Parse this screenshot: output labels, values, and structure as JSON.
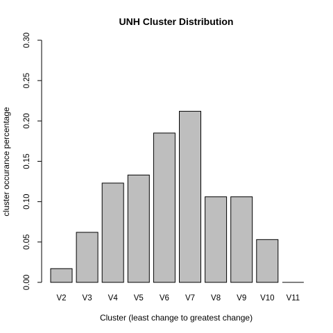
{
  "chart_data": {
    "type": "bar",
    "title": "UNH Cluster Distribution",
    "xlabel": "Cluster (least change to greatest change)",
    "ylabel": "cluster occurance percentage",
    "categories": [
      "V2",
      "V3",
      "V4",
      "V5",
      "V6",
      "V7",
      "V8",
      "V9",
      "V10",
      "V11"
    ],
    "values": [
      0.017,
      0.062,
      0.123,
      0.133,
      0.185,
      0.212,
      0.106,
      0.106,
      0.053,
      0.0
    ],
    "ylim": [
      0,
      0.3
    ],
    "yticks": [
      0.0,
      0.05,
      0.1,
      0.15,
      0.2,
      0.25,
      0.3
    ],
    "ytick_labels": [
      "0.00",
      "0.05",
      "0.10",
      "0.15",
      "0.20",
      "0.25",
      "0.30"
    ],
    "bar_color": "#bebebe",
    "edge_color": "#000000",
    "grid": false,
    "legend": "none"
  }
}
